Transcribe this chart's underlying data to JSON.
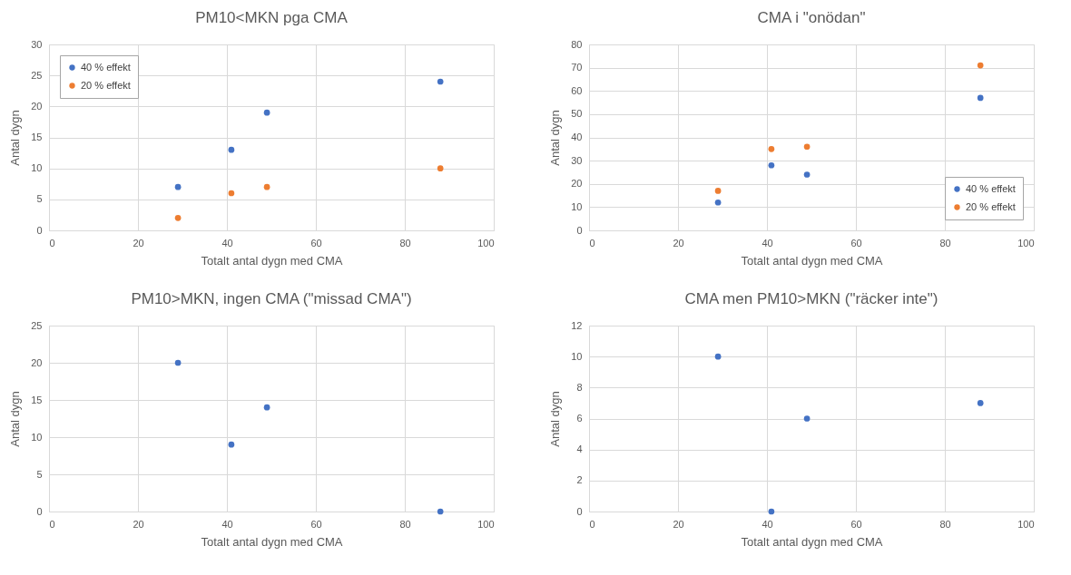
{
  "chart_data": [
    {
      "type": "scatter",
      "title": "PM10<MKN pga CMA",
      "xlabel": "Totalt antal dygn med CMA",
      "ylabel": "Antal dygn",
      "x": [
        29,
        41,
        49,
        88
      ],
      "series": [
        {
          "name": "40 % effekt",
          "color": "#4472c4",
          "values": [
            7,
            13,
            19,
            24
          ]
        },
        {
          "name": "20 % effekt",
          "color": "#ed7d31",
          "values": [
            2,
            6,
            7,
            10
          ]
        }
      ],
      "xlim": [
        0,
        100
      ],
      "xticks": [
        0,
        20,
        40,
        60,
        80,
        100
      ],
      "ylim": [
        0,
        30
      ],
      "yticks": [
        0,
        5,
        10,
        15,
        20,
        25,
        30
      ],
      "grid": true,
      "legend": "top left",
      "marker": "circle"
    },
    {
      "type": "scatter",
      "title": "CMA i \"onödan\"",
      "xlabel": "Totalt antal dygn med CMA",
      "ylabel": "Antal dygn",
      "x": [
        29,
        41,
        49,
        88
      ],
      "series": [
        {
          "name": "40 % effekt",
          "color": "#4472c4",
          "values": [
            12,
            28,
            24,
            57
          ]
        },
        {
          "name": "20 % effekt",
          "color": "#ed7d31",
          "values": [
            17,
            35,
            36,
            71
          ]
        }
      ],
      "xlim": [
        0,
        100
      ],
      "xticks": [
        0,
        20,
        40,
        60,
        80,
        100
      ],
      "ylim": [
        0,
        80
      ],
      "yticks": [
        0,
        10,
        20,
        30,
        40,
        50,
        60,
        70,
        80
      ],
      "grid": true,
      "legend": "bottom right",
      "marker": "circle"
    },
    {
      "type": "scatter",
      "title": "PM10>MKN, ingen CMA (\"missad CMA\")",
      "xlabel": "Totalt antal dygn med CMA",
      "ylabel": "Antal dygn",
      "x": [
        29,
        41,
        49,
        88
      ],
      "series": [
        {
          "color": "#4472c4",
          "values": [
            20,
            9,
            14,
            0
          ]
        }
      ],
      "xlim": [
        0,
        100
      ],
      "xticks": [
        0,
        20,
        40,
        60,
        80,
        100
      ],
      "ylim": [
        0,
        25
      ],
      "yticks": [
        0,
        5,
        10,
        15,
        20,
        25
      ],
      "grid": true,
      "marker": "circle"
    },
    {
      "type": "scatter",
      "title": "CMA men PM10>MKN (\"räcker inte\")",
      "xlabel": "Totalt antal dygn med CMA",
      "ylabel": "Antal dygn",
      "x": [
        29,
        41,
        49,
        88
      ],
      "series": [
        {
          "color": "#4472c4",
          "values": [
            10,
            0,
            6,
            7
          ]
        }
      ],
      "xlim": [
        0,
        100
      ],
      "xticks": [
        0,
        20,
        40,
        60,
        80,
        100
      ],
      "ylim": [
        0,
        12
      ],
      "yticks": [
        0,
        2,
        4,
        6,
        8,
        10,
        12
      ],
      "grid": true,
      "marker": "circle"
    }
  ]
}
